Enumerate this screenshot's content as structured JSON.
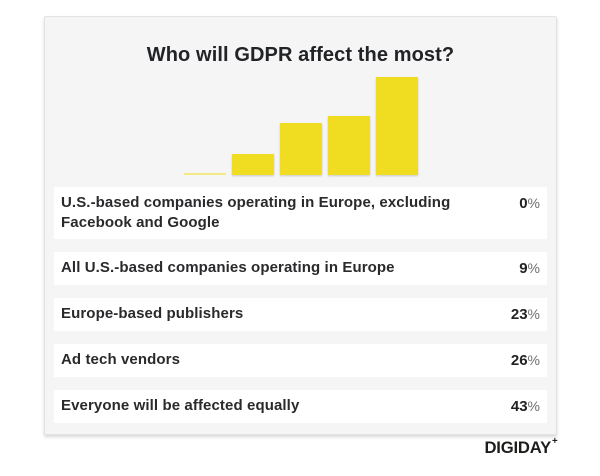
{
  "title": "Who will GDPR affect the most?",
  "chart_data": {
    "type": "bar",
    "title": "Who will GDPR affect the most?",
    "categories": [
      "U.S.-based companies operating in Europe, excluding Facebook and Google",
      "All U.S.-based companies operating in Europe",
      "Europe-based publishers",
      "Ad tech vendors",
      "Everyone will be affected equally"
    ],
    "values": [
      0,
      9,
      23,
      26,
      43
    ],
    "value_display": [
      "0",
      "9",
      "23",
      "26",
      "43"
    ],
    "unit": "%",
    "xlabel": "",
    "ylabel": "",
    "ylim": [
      0,
      45
    ],
    "grid": false,
    "legend": "none",
    "orientation": "vertical",
    "bar_color": "#F0DC20"
  },
  "colors": {
    "accent_yellow": "#F0DC20",
    "card_background": "#F5F5F6",
    "row_background": "#FFFFFF",
    "text_dark": "#222326",
    "unit_gray": "#6E6E70"
  },
  "brand": {
    "name": "DIGIDAY",
    "plus_mark": "+"
  }
}
